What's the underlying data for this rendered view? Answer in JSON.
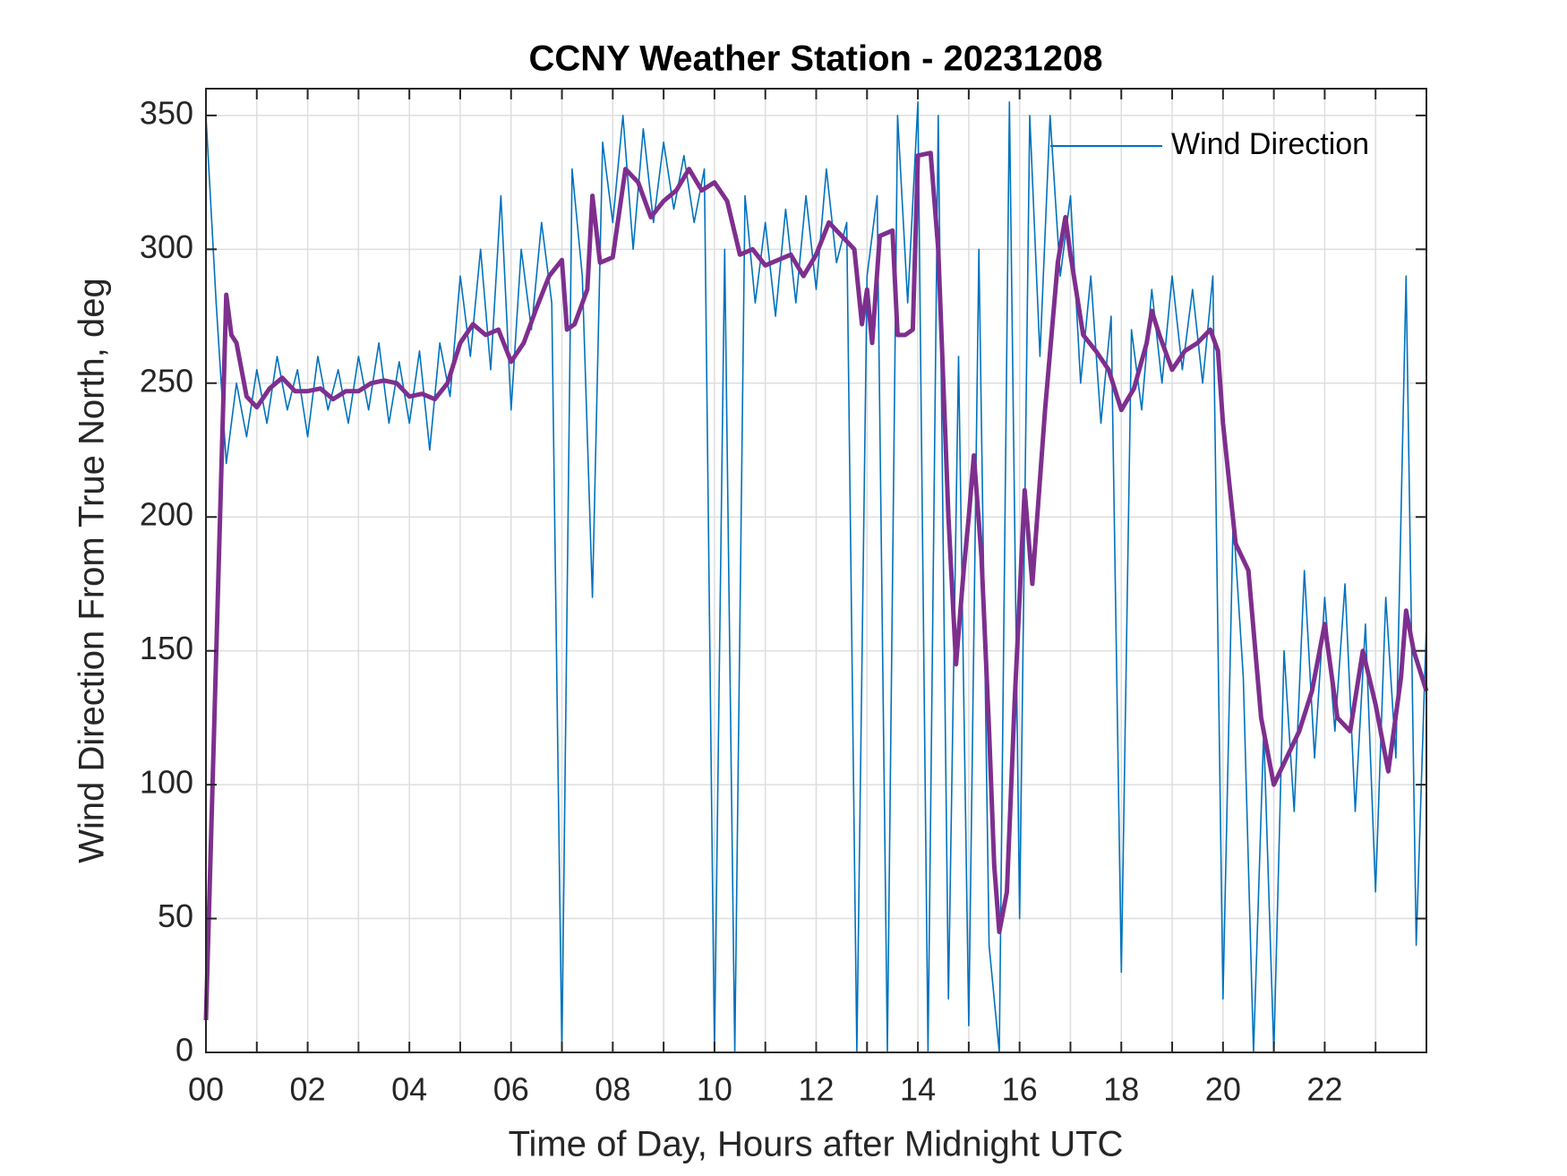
{
  "chart_data": {
    "type": "line",
    "title": "CCNY Weather Station - 20231208",
    "xlabel": "Time of Day, Hours after Midnight UTC",
    "ylabel": "Wind Direction From True North, deg",
    "xlim": [
      0,
      24
    ],
    "ylim": [
      0,
      360
    ],
    "xticks": [
      {
        "value": 0,
        "label": "00"
      },
      {
        "value": 2,
        "label": "02"
      },
      {
        "value": 4,
        "label": "04"
      },
      {
        "value": 6,
        "label": "06"
      },
      {
        "value": 8,
        "label": "08"
      },
      {
        "value": 10,
        "label": "10"
      },
      {
        "value": 12,
        "label": "12"
      },
      {
        "value": 14,
        "label": "14"
      },
      {
        "value": 16,
        "label": "16"
      },
      {
        "value": 18,
        "label": "18"
      },
      {
        "value": 20,
        "label": "20"
      },
      {
        "value": 22,
        "label": "22"
      }
    ],
    "xminorticks": [
      1,
      3,
      5,
      7,
      9,
      11,
      13,
      15,
      17,
      19,
      21,
      23
    ],
    "yticks": [
      0,
      50,
      100,
      150,
      200,
      250,
      300,
      350
    ],
    "grid": true,
    "legend": "northeast",
    "series": [
      {
        "name": "Wind Direction",
        "color": "#0072BD",
        "width": 1.6,
        "x": [
          0,
          0.2,
          0.4,
          0.6,
          0.8,
          1,
          1.2,
          1.4,
          1.6,
          1.8,
          2,
          2.2,
          2.4,
          2.6,
          2.8,
          3,
          3.2,
          3.4,
          3.6,
          3.8,
          4,
          4.2,
          4.4,
          4.6,
          4.8,
          5,
          5.2,
          5.4,
          5.6,
          5.8,
          6,
          6.2,
          6.4,
          6.6,
          6.8,
          7,
          7.2,
          7.4,
          7.6,
          7.8,
          8,
          8.2,
          8.4,
          8.6,
          8.8,
          9,
          9.2,
          9.4,
          9.6,
          9.8,
          10,
          10.2,
          10.4,
          10.6,
          10.8,
          11,
          11.2,
          11.4,
          11.6,
          11.8,
          12,
          12.2,
          12.4,
          12.6,
          12.8,
          13,
          13.2,
          13.4,
          13.6,
          13.8,
          14,
          14.2,
          14.4,
          14.6,
          14.8,
          15,
          15.2,
          15.4,
          15.6,
          15.8,
          16,
          16.2,
          16.4,
          16.6,
          16.8,
          17,
          17.2,
          17.4,
          17.6,
          17.8,
          18,
          18.2,
          18.4,
          18.6,
          18.8,
          19,
          19.2,
          19.4,
          19.6,
          19.8,
          20,
          20.2,
          20.4,
          20.6,
          20.8,
          21,
          21.2,
          21.4,
          21.6,
          21.8,
          22,
          22.2,
          22.4,
          22.6,
          22.8,
          23,
          23.2,
          23.4,
          23.6,
          23.8,
          24
        ],
        "values": [
          350,
          280,
          220,
          250,
          230,
          255,
          235,
          260,
          240,
          255,
          230,
          260,
          240,
          255,
          235,
          260,
          240,
          265,
          235,
          258,
          235,
          262,
          225,
          265,
          245,
          290,
          260,
          300,
          255,
          320,
          240,
          300,
          270,
          310,
          280,
          0,
          330,
          290,
          170,
          340,
          310,
          350,
          300,
          345,
          310,
          340,
          315,
          335,
          310,
          330,
          0,
          300,
          0,
          320,
          280,
          310,
          275,
          315,
          280,
          320,
          285,
          330,
          295,
          310,
          0,
          290,
          320,
          0,
          350,
          280,
          355,
          0,
          350,
          20,
          260,
          10,
          300,
          40,
          0,
          355,
          50,
          350,
          260,
          350,
          290,
          320,
          250,
          290,
          235,
          275,
          30,
          270,
          240,
          285,
          250,
          290,
          255,
          285,
          250,
          290,
          20,
          200,
          140,
          0,
          120,
          0,
          150,
          90,
          180,
          110,
          170,
          120,
          175,
          90,
          160,
          60,
          170,
          110,
          290,
          40,
          160
        ]
      },
      {
        "color": "#7E2F8E",
        "width": 5,
        "x": [
          0,
          0.4,
          0.5,
          0.6,
          0.8,
          1,
          1.25,
          1.5,
          1.75,
          2,
          2.25,
          2.5,
          2.75,
          3,
          3.25,
          3.5,
          3.75,
          4,
          4.25,
          4.5,
          4.75,
          5,
          5.25,
          5.5,
          5.75,
          6,
          6.25,
          6.5,
          6.75,
          7,
          7.1,
          7.25,
          7.5,
          7.6,
          7.75,
          8,
          8.25,
          8.5,
          8.75,
          9,
          9.25,
          9.5,
          9.75,
          10,
          10.25,
          10.5,
          10.75,
          11,
          11.25,
          11.5,
          11.75,
          12,
          12.25,
          12.5,
          12.75,
          12.9,
          13,
          13.1,
          13.25,
          13.5,
          13.6,
          13.75,
          13.9,
          14,
          14.25,
          14.4,
          14.5,
          14.6,
          14.75,
          14.9,
          15,
          15.1,
          15.25,
          15.4,
          15.5,
          15.6,
          15.75,
          15.9,
          16,
          16.1,
          16.25,
          16.5,
          16.75,
          16.9,
          17,
          17.25,
          17.5,
          17.75,
          18,
          18.25,
          18.5,
          18.6,
          18.75,
          19,
          19.25,
          19.5,
          19.75,
          19.9,
          20,
          20.25,
          20.5,
          20.75,
          21,
          21.25,
          21.5,
          21.75,
          22,
          22.25,
          22.5,
          22.75,
          23,
          23.25,
          23.5,
          23.6,
          23.75,
          24
        ],
        "values": [
          12,
          283,
          268,
          265,
          245,
          241,
          248,
          252,
          247,
          247,
          248,
          244,
          247,
          247,
          250,
          251,
          250,
          245,
          246,
          244,
          250,
          265,
          272,
          268,
          270,
          258,
          265,
          278,
          290,
          296,
          270,
          272,
          285,
          320,
          295,
          297,
          330,
          325,
          312,
          318,
          322,
          330,
          322,
          325,
          318,
          298,
          300,
          294,
          296,
          298,
          290,
          298,
          310,
          305,
          300,
          272,
          285,
          265,
          305,
          307,
          268,
          268,
          270,
          335,
          336,
          300,
          250,
          200,
          145,
          180,
          200,
          223,
          185,
          120,
          70,
          45,
          60,
          130,
          170,
          210,
          175,
          240,
          295,
          312,
          298,
          268,
          262,
          255,
          240,
          248,
          265,
          277,
          268,
          255,
          262,
          265,
          270,
          262,
          235,
          190,
          180,
          125,
          100,
          110,
          120,
          135,
          160,
          125,
          120,
          150,
          130,
          105,
          140,
          165,
          150,
          135
        ]
      }
    ]
  }
}
